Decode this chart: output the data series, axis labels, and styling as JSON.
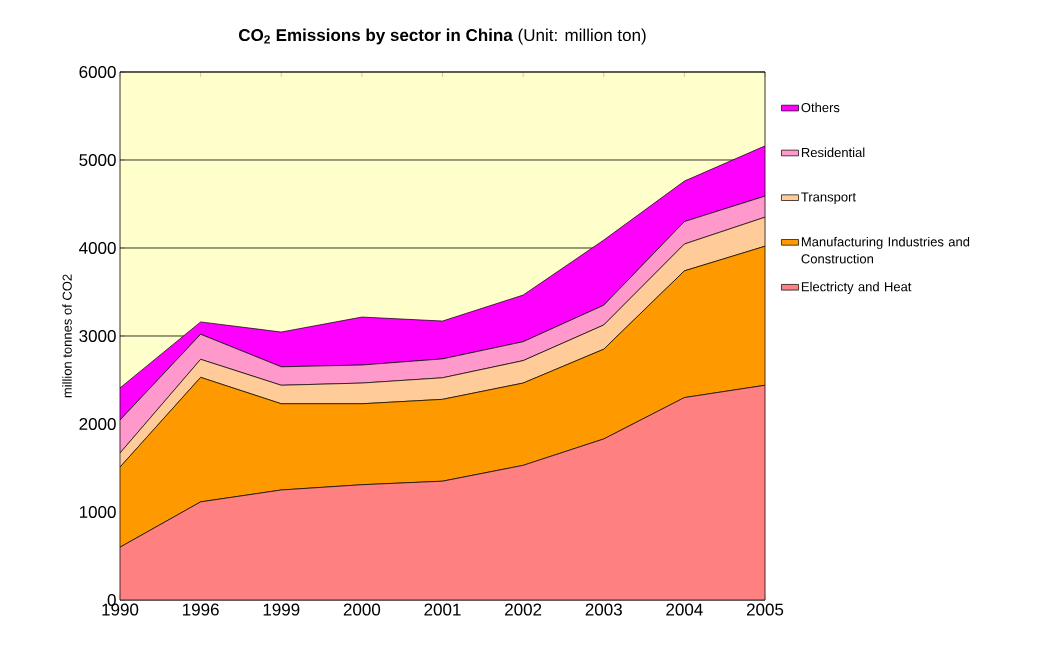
{
  "chart_data": {
    "type": "area",
    "title": "**CO$_{2}$ Emissions by sector in China** (Unit: million ton)",
    "ylabel": "million tonnes of CO2",
    "categories": [
      "1990",
      "1996",
      "1999",
      "2000",
      "2001",
      "2002",
      "2003",
      "2004",
      "2005"
    ],
    "stacked": true,
    "ylim": [
      0,
      6000
    ],
    "yticks": [
      0,
      1000,
      2000,
      3000,
      4000,
      5000,
      6000
    ],
    "grid": "y",
    "legend": "right",
    "series": [
      {
        "name": "Electricty and Heat",
        "color": "#ff8080",
        "values": [
          600,
          1115,
          1250,
          1310,
          1350,
          1530,
          1830,
          2300,
          2440
        ]
      },
      {
        "name": "Manufacturing Industries and Construction",
        "color": "#ff9900",
        "values": [
          910,
          1415,
          980,
          920,
          930,
          935,
          1020,
          1440,
          1580
        ]
      },
      {
        "name": "Transport",
        "color": "#ffcc99",
        "values": [
          160,
          205,
          210,
          235,
          245,
          255,
          275,
          305,
          330
        ]
      },
      {
        "name": "Residential",
        "color": "#ff99cc",
        "values": [
          375,
          285,
          210,
          205,
          215,
          215,
          225,
          255,
          240
        ]
      },
      {
        "name": "Others",
        "color": "#ff00ff",
        "values": [
          365,
          140,
          395,
          545,
          430,
          530,
          740,
          460,
          570
        ]
      }
    ]
  }
}
